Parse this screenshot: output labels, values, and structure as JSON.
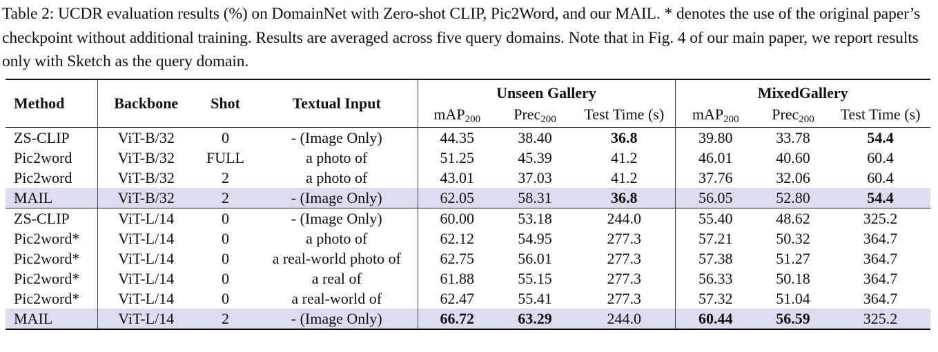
{
  "caption": "Table 2: UCDR evaluation results (%) on DomainNet with Zero-shot CLIP, Pic2Word, and our MAIL. * denotes the use of the original paper’s checkpoint without additional training. Results are averaged across five query domains. Note that in Fig. 4 of our main paper, we report results only with Sketch as the query domain.",
  "headers": {
    "method": "Method",
    "backbone": "Backbone",
    "shot": "Shot",
    "textual_input": "Textual Input",
    "unseen_gallery": "Unseen Gallery",
    "mixed_gallery": "MixedGallery",
    "map": "mAP",
    "map_sub": "200",
    "prec": "Prec",
    "prec_sub": "200",
    "test_time": "Test Time (s)"
  },
  "groups": [
    {
      "rows": [
        {
          "method": "ZS-CLIP",
          "backbone": "ViT-B/32",
          "shot": "0",
          "text": "- (Image Only)",
          "u_map": "44.35",
          "u_prec": "38.40",
          "u_time": "36.8",
          "m_map": "39.80",
          "m_prec": "33.78",
          "m_time": "54.4",
          "highlight": false,
          "bold": [
            "u_time",
            "m_time"
          ]
        },
        {
          "method": "Pic2word",
          "backbone": "ViT-B/32",
          "shot": "FULL",
          "text": "a photo of",
          "u_map": "51.25",
          "u_prec": "45.39",
          "u_time": "41.2",
          "m_map": "46.01",
          "m_prec": "40.60",
          "m_time": "60.4",
          "highlight": false,
          "bold": []
        },
        {
          "method": "Pic2word",
          "backbone": "ViT-B/32",
          "shot": "2",
          "text": "a photo of",
          "u_map": "43.01",
          "u_prec": "37.03",
          "u_time": "41.2",
          "m_map": "37.76",
          "m_prec": "32.06",
          "m_time": "60.4",
          "highlight": false,
          "bold": []
        },
        {
          "method": "MAIL",
          "backbone": "ViT-B/32",
          "shot": "2",
          "text": "- (Image Only)",
          "u_map": "62.05",
          "u_prec": "58.31",
          "u_time": "36.8",
          "m_map": "56.05",
          "m_prec": "52.80",
          "m_time": "54.4",
          "highlight": true,
          "bold": [
            "u_time",
            "m_time"
          ]
        }
      ]
    },
    {
      "rows": [
        {
          "method": "ZS-CLIP",
          "backbone": "ViT-L/14",
          "shot": "0",
          "text": "- (Image Only)",
          "u_map": "60.00",
          "u_prec": "53.18",
          "u_time": "244.0",
          "m_map": "55.40",
          "m_prec": "48.62",
          "m_time": "325.2",
          "highlight": false,
          "bold": []
        },
        {
          "method": "Pic2word*",
          "backbone": "ViT-L/14",
          "shot": "0",
          "text": "a photo of",
          "u_map": "62.12",
          "u_prec": "54.95",
          "u_time": "277.3",
          "m_map": "57.21",
          "m_prec": "50.32",
          "m_time": "364.7",
          "highlight": false,
          "bold": []
        },
        {
          "method": "Pic2word*",
          "backbone": "ViT-L/14",
          "shot": "0",
          "text": "a real-world photo of",
          "u_map": "62.75",
          "u_prec": "56.01",
          "u_time": "277.3",
          "m_map": "57.38",
          "m_prec": "51.27",
          "m_time": "364.7",
          "highlight": false,
          "bold": []
        },
        {
          "method": "Pic2word*",
          "backbone": "ViT-L/14",
          "shot": "0",
          "text": "a real of",
          "u_map": "61.88",
          "u_prec": "55.15",
          "u_time": "277.3",
          "m_map": "56.33",
          "m_prec": "50.18",
          "m_time": "364.7",
          "highlight": false,
          "bold": []
        },
        {
          "method": "Pic2word*",
          "backbone": "ViT-L/14",
          "shot": "0",
          "text": "a real-world of",
          "u_map": "62.47",
          "u_prec": "55.41",
          "u_time": "277.3",
          "m_map": "57.32",
          "m_prec": "51.04",
          "m_time": "364.7",
          "highlight": false,
          "bold": []
        },
        {
          "method": "MAIL",
          "backbone": "ViT-L/14",
          "shot": "2",
          "text": "- (Image Only)",
          "u_map": "66.72",
          "u_prec": "63.29",
          "u_time": "244.0",
          "m_map": "60.44",
          "m_prec": "56.59",
          "m_time": "325.2",
          "highlight": true,
          "bold": [
            "u_map",
            "u_prec",
            "m_map",
            "m_prec"
          ]
        }
      ]
    }
  ]
}
